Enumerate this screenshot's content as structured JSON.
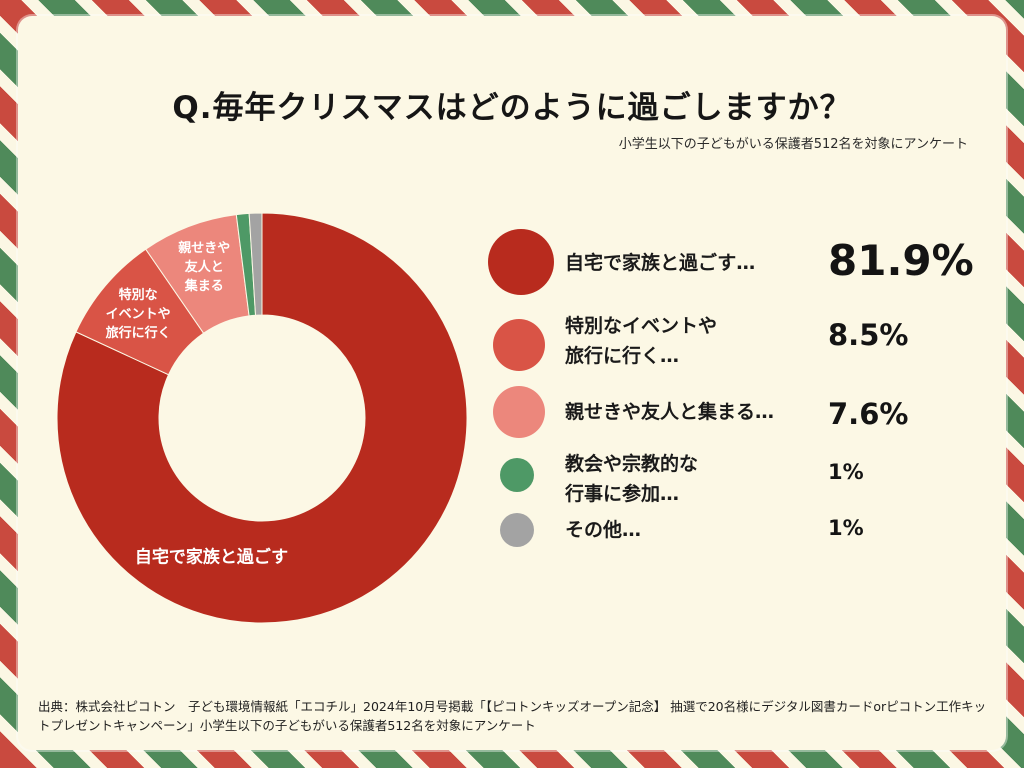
{
  "title": "Q.毎年クリスマスはどのように過ごしますか？",
  "subtitle": "小学生以下の子どもがいる保護者512名を対象にアンケート",
  "source": "出典：株式会社ピコトン　子ども環境情報紙「エコチル」2024年10月号掲載「【ピコトンキッズオープン記念】 抽選で20名様にデジタル図書カードorピコトン工作キットプレゼントキャンペーン」小学生以下の子どもがいる保護者512名を対象にアンケート",
  "chart_data": {
    "type": "pie",
    "style": "donut",
    "categories": [
      "自宅で家族と過ごす",
      "特別なイベントや旅行に行く",
      "親せきや友人と集まる",
      "教会や宗教的な行事に参加",
      "その他"
    ],
    "values": [
      81.9,
      8.5,
      7.6,
      1,
      1
    ],
    "value_labels": [
      "81.9%",
      "8.5%",
      "7.6%",
      "1%",
      "1%"
    ],
    "colors": [
      "#b82b1e",
      "#d95446",
      "#ec877c",
      "#4e9966",
      "#a3a3a3"
    ],
    "slice_labels": [
      [
        "自宅で家族と過ごす"
      ],
      [
        "特別な",
        "イベントや",
        "旅行に行く"
      ],
      [
        "親せきや",
        "友人と",
        "集まる"
      ],
      [],
      []
    ],
    "legend_labels": [
      "自宅で家族と過ごす…",
      "特別なイベントや\n旅行に行く…",
      "親せきや友人と集まる…",
      "教会や宗教的な\n行事に参加…",
      "その他…"
    ],
    "legend_placement": "right"
  }
}
